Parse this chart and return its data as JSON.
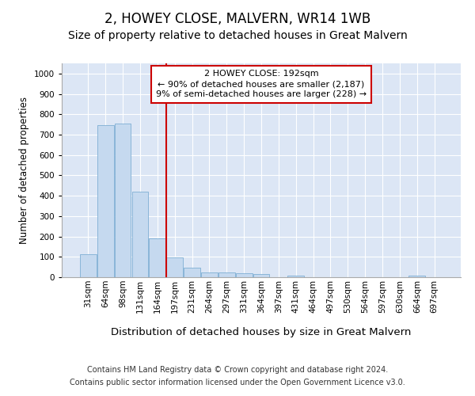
{
  "title": "2, HOWEY CLOSE, MALVERN, WR14 1WB",
  "subtitle": "Size of property relative to detached houses in Great Malvern",
  "xlabel": "Distribution of detached houses by size in Great Malvern",
  "ylabel": "Number of detached properties",
  "categories": [
    "31sqm",
    "64sqm",
    "98sqm",
    "131sqm",
    "164sqm",
    "197sqm",
    "231sqm",
    "264sqm",
    "297sqm",
    "331sqm",
    "364sqm",
    "397sqm",
    "431sqm",
    "464sqm",
    "497sqm",
    "530sqm",
    "564sqm",
    "597sqm",
    "630sqm",
    "664sqm",
    "697sqm"
  ],
  "values": [
    112,
    748,
    754,
    421,
    190,
    98,
    45,
    22,
    22,
    18,
    14,
    0,
    8,
    0,
    0,
    0,
    0,
    0,
    0,
    8,
    0
  ],
  "bar_color": "#c5d9ef",
  "bar_edge_color": "#7eaed4",
  "vline_color": "#cc0000",
  "annotation_text": "2 HOWEY CLOSE: 192sqm\n← 90% of detached houses are smaller (2,187)\n9% of semi-detached houses are larger (228) →",
  "annotation_box_color": "#cc0000",
  "ylim": [
    0,
    1050
  ],
  "yticks": [
    0,
    100,
    200,
    300,
    400,
    500,
    600,
    700,
    800,
    900,
    1000
  ],
  "plot_bg_color": "#dce6f5",
  "footer_line1": "Contains HM Land Registry data © Crown copyright and database right 2024.",
  "footer_line2": "Contains public sector information licensed under the Open Government Licence v3.0.",
  "title_fontsize": 12,
  "subtitle_fontsize": 10,
  "xlabel_fontsize": 9.5,
  "ylabel_fontsize": 8.5,
  "tick_fontsize": 7.5,
  "annot_fontsize": 8,
  "footer_fontsize": 7
}
